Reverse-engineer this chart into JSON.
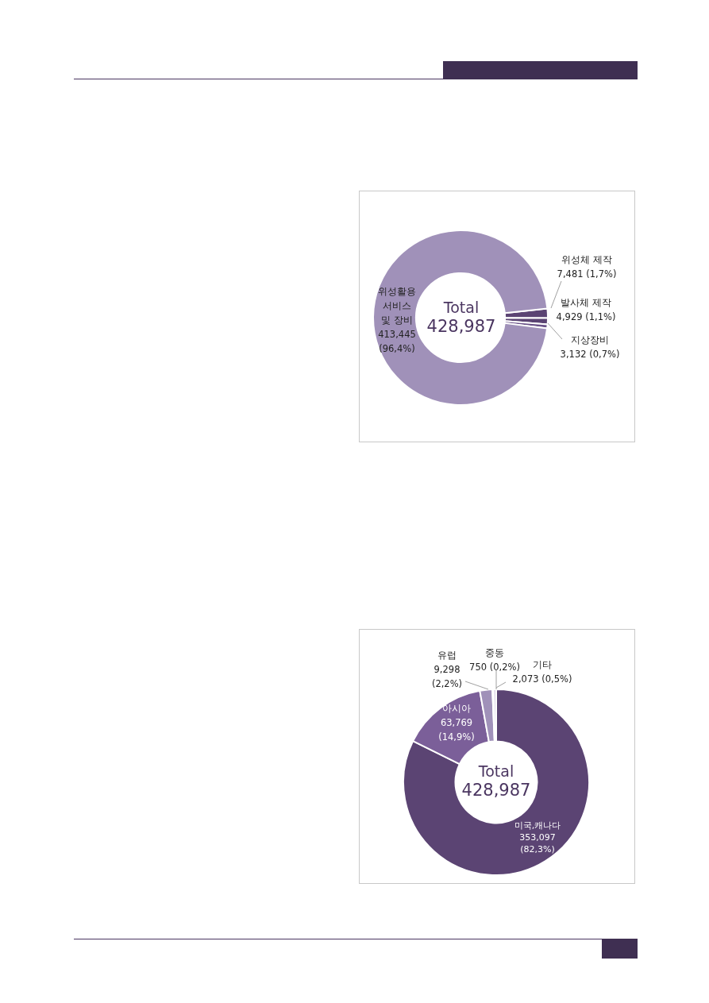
{
  "chart_data": [
    {
      "type": "donut",
      "categories": [
        "위성체 제작",
        "발사체 제작",
        "지상장비",
        "위성활용 서비스 및 장비"
      ],
      "values": [
        7481,
        4929,
        3132,
        413445
      ],
      "colors": [
        "#5b4473",
        "#5b4473",
        "#6a5288",
        "#a091b9"
      ],
      "value_labels": [
        "7,481 (1,7%)",
        "4,929 (1,1%)",
        "3,132 (0,7%)",
        "413,445 (96,4%)"
      ],
      "annotations": [
        "Total",
        "428,987"
      ]
    },
    {
      "type": "donut",
      "categories": [
        "미국,캐나다",
        "아시아",
        "유럽",
        "중동",
        "기타"
      ],
      "values": [
        353097,
        63769,
        9298,
        750,
        2073
      ],
      "colors": [
        "#5b4473",
        "#7b5f99",
        "#a091b9",
        "#c8bed6",
        "#ddd6e6"
      ],
      "value_labels": [
        "353,097 (82,3%)",
        "63,769 (14,9%)",
        "9,298 (2,2%)",
        "750 (0,2%)",
        "2,073 (0,5%)"
      ],
      "annotations": [
        "Total",
        "428,987"
      ]
    }
  ]
}
